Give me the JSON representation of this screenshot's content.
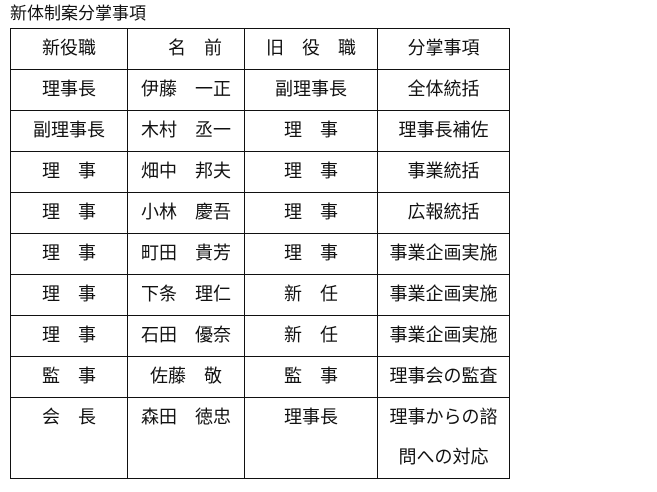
{
  "title": "新体制案分掌事項",
  "table": {
    "headers": [
      "新役職",
      "　名　前",
      "旧　役　職",
      "分掌事項"
    ],
    "rows": [
      [
        "理事長",
        "伊藤　一正",
        "副理事長",
        "全体統括"
      ],
      [
        "副理事長",
        "木村　丞一",
        "理　事",
        "理事長補佐"
      ],
      [
        "理　事",
        "畑中　邦夫",
        "理　事",
        "事業統括"
      ],
      [
        "理　事",
        "小林　慶吾",
        "理　事",
        "広報統括"
      ],
      [
        "理　事",
        "町田　貴芳",
        "理　事",
        "事業企画実施"
      ],
      [
        "理　事",
        "下条　理仁",
        "新　任",
        "事業企画実施"
      ],
      [
        "理　事",
        "石田　優奈",
        "新　任",
        "事業企画実施"
      ],
      [
        "監　事",
        "佐藤　敬",
        "監　事",
        "理事会の監査"
      ],
      [
        "会　長",
        "森田　徳忠",
        "理事長",
        "理事からの諮問への対応"
      ]
    ]
  }
}
